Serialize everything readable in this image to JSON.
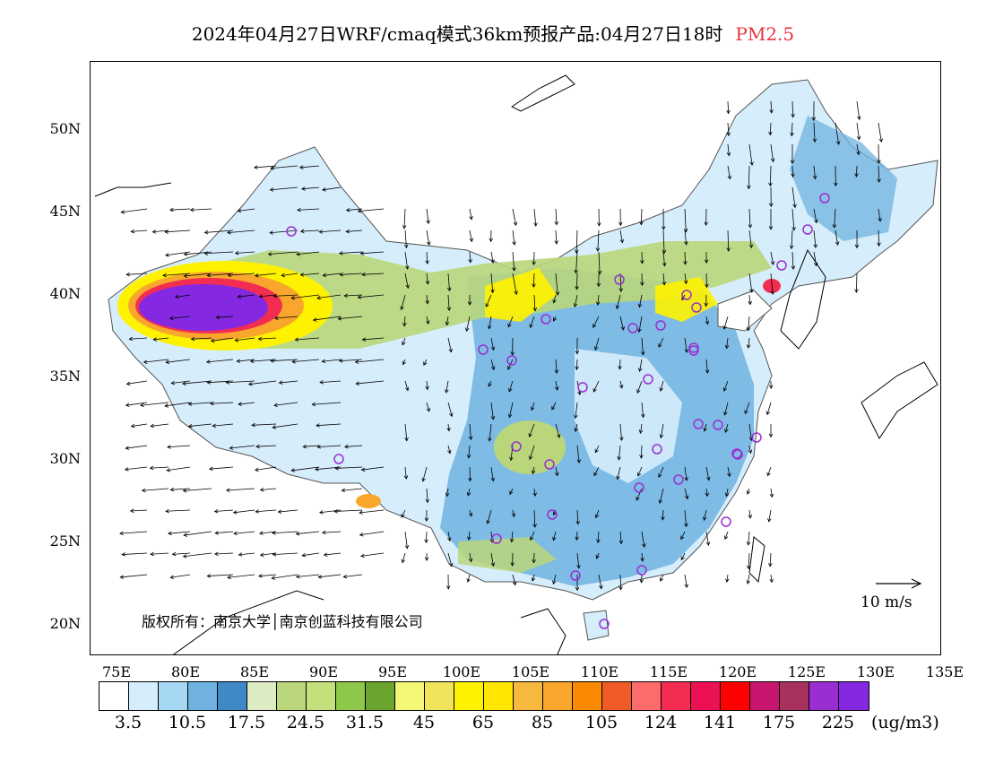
{
  "title": "2024年04月27日WRF/cmaq模式36km预报产品:04月27日18时",
  "pollutant": "PM2.5",
  "lat_labels": [
    "50N",
    "45N",
    "40N",
    "35N",
    "30N",
    "25N",
    "20N"
  ],
  "lon_labels": [
    "75E",
    "80E",
    "85E",
    "90E",
    "95E",
    "100E",
    "105E",
    "110E",
    "115E",
    "120E",
    "125E",
    "130E",
    "135E"
  ],
  "copyright": "版权所有：南京大学│南京创蓝科技有限公司",
  "reference_vector": "10 m/s",
  "colorbar": {
    "colors": [
      "#ffffff",
      "#d6edfb",
      "#a6d8f3",
      "#6fb1e0",
      "#3f89c6",
      "#dcebc2",
      "#b9d67b",
      "#c3e07a",
      "#8dc84a",
      "#6aa42f",
      "#f4f876",
      "#f1e35a",
      "#fff200",
      "#ffe600",
      "#f6b83f",
      "#f8a72c",
      "#fb8a03",
      "#f05a26",
      "#fd6b6b",
      "#f22d51",
      "#ec1152",
      "#fe0000",
      "#c8166f",
      "#a8325d",
      "#9a2ed0",
      "#8429e1"
    ],
    "labels": [
      "3.5",
      "10.5",
      "17.5",
      "24.5",
      "31.5",
      "45",
      "65",
      "85",
      "105",
      "124",
      "141",
      "175",
      "225"
    ],
    "unit": "(ug/m3)"
  },
  "map_colors": {
    "light_blue": "#d6edfb",
    "mid_blue": "#6fb1e0",
    "green": "#b9d67b",
    "yellow": "#fff200",
    "red": "#f22d51",
    "purple": "#8429e1",
    "station": "#9a2ed0"
  }
}
